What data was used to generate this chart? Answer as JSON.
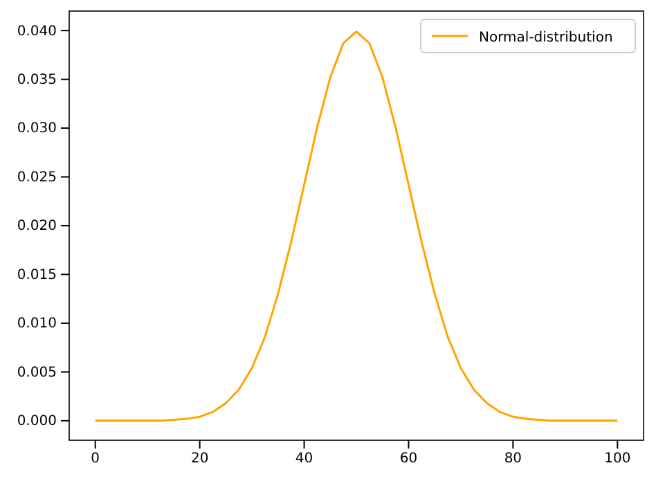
{
  "chart_data": {
    "type": "line",
    "x": [
      0,
      2.5,
      5,
      7.5,
      10,
      12.5,
      15,
      17.5,
      20,
      22.5,
      25,
      27.5,
      30,
      32.5,
      35,
      37.5,
      40,
      42.5,
      45,
      47.5,
      50,
      52.5,
      55,
      57.5,
      60,
      62.5,
      65,
      67.5,
      70,
      72.5,
      75,
      77.5,
      80,
      82.5,
      85,
      87.5,
      90,
      92.5,
      95,
      97.5,
      100
    ],
    "series": [
      {
        "name": "Normal-distribution",
        "color": "#ffa500",
        "values": [
          0,
          0,
          0,
          0,
          0,
          0,
          0.0001,
          0.0002,
          0.0004,
          0.0009,
          0.0018,
          0.0032,
          0.0054,
          0.0086,
          0.013,
          0.0183,
          0.0242,
          0.0301,
          0.0352,
          0.0387,
          0.0399,
          0.0387,
          0.0352,
          0.0301,
          0.0242,
          0.0183,
          0.013,
          0.0086,
          0.0054,
          0.0032,
          0.0018,
          0.0009,
          0.0004,
          0.0002,
          0.0001,
          0,
          0,
          0,
          0,
          0,
          0
        ]
      }
    ],
    "xlim": [
      -5,
      105
    ],
    "xticks": [
      0,
      20,
      40,
      60,
      80,
      100
    ],
    "ylim": [
      -0.002,
      0.042
    ],
    "yticks": [
      {
        "value": 0,
        "label": "0.000"
      },
      {
        "value": 0.005,
        "label": "0.005"
      },
      {
        "value": 0.01,
        "label": "0.010"
      },
      {
        "value": 0.015,
        "label": "0.015"
      },
      {
        "value": 0.02,
        "label": "0.020"
      },
      {
        "value": 0.025,
        "label": "0.025"
      },
      {
        "value": 0.03,
        "label": "0.030"
      },
      {
        "value": 0.035,
        "label": "0.035"
      },
      {
        "value": 0.04,
        "label": "0.040"
      }
    ],
    "legend": "top right",
    "marker": "none",
    "line_style": "solid"
  }
}
